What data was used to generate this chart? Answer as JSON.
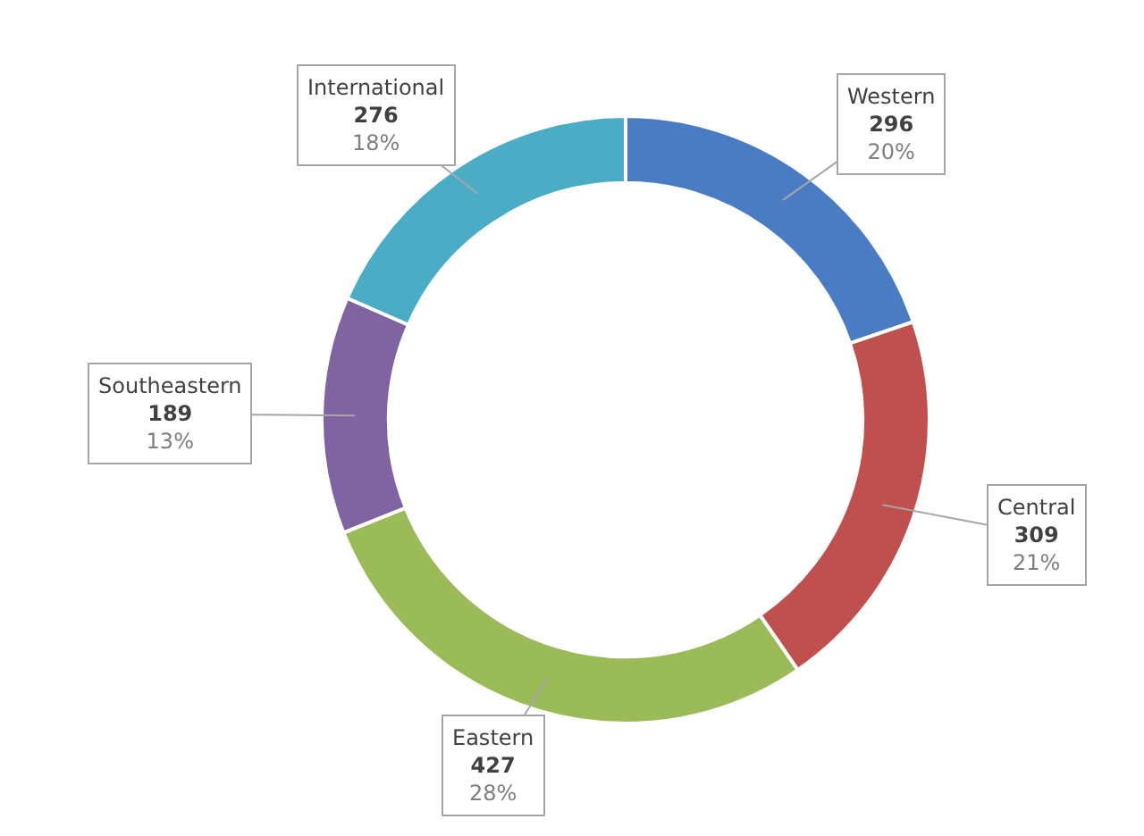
{
  "chart_data": {
    "type": "donut",
    "categories": [
      "Western",
      "Central",
      "Eastern",
      "Southeastern",
      "International"
    ],
    "values": [
      296,
      309,
      427,
      189,
      276
    ],
    "colors": [
      "#4a7cc4",
      "#c0504d",
      "#9bbb59",
      "#8064a2",
      "#4bacc6"
    ],
    "value_labels": [
      "296\n20%",
      "309\n21%",
      "427\n28%",
      "189\n13%",
      "276\n18%"
    ],
    "legend": false
  }
}
